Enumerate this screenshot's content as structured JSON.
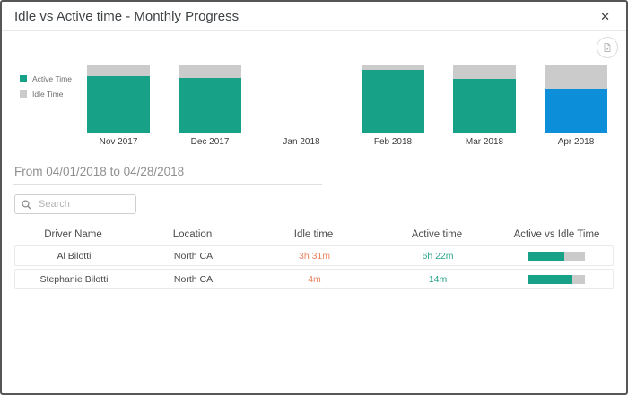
{
  "modal": {
    "title": "Idle vs Active time - Monthly Progress",
    "close_glyph": "✕"
  },
  "toolbar": {
    "export_icon": "export-report-icon"
  },
  "colors": {
    "active": "#17a287",
    "idle": "#cbcbcb",
    "selected_active": "#0c8ed8",
    "idle_text": "#ec8460",
    "active_text": "#26a38a"
  },
  "legend": {
    "items": [
      {
        "label": "Active Time",
        "color": "#17a287"
      },
      {
        "label": "Idle Time",
        "color": "#cbcbcb"
      }
    ]
  },
  "chart_data": {
    "type": "bar",
    "stacked": true,
    "unit": "percent_of_total",
    "categories": [
      "Nov 2017",
      "Dec 2017",
      "Jan 2018",
      "Feb 2018",
      "Mar 2018",
      "Apr 2018"
    ],
    "series": [
      {
        "name": "Active Time",
        "values": [
          84,
          81,
          null,
          94,
          80,
          65
        ]
      },
      {
        "name": "Idle Time",
        "values": [
          16,
          19,
          null,
          6,
          20,
          35
        ]
      }
    ],
    "selected_category": "Apr 2018",
    "legend_position": "left",
    "title": "Idle vs Active time - Monthly Progress"
  },
  "date_range": {
    "label": "From 04/01/2018 to 04/28/2018"
  },
  "search": {
    "placeholder": "Search"
  },
  "table": {
    "columns": [
      "Driver Name",
      "Location",
      "Idle time",
      "Active time",
      "Active vs Idle Time"
    ],
    "rows": [
      {
        "driver": "Al Bilotti",
        "location": "North CA",
        "idle": "3h 31m",
        "active": "6h 22m",
        "active_pct": 64
      },
      {
        "driver": "Stephanie Bilotti",
        "location": "North CA",
        "idle": "4m",
        "active": "14m",
        "active_pct": 78
      }
    ]
  }
}
